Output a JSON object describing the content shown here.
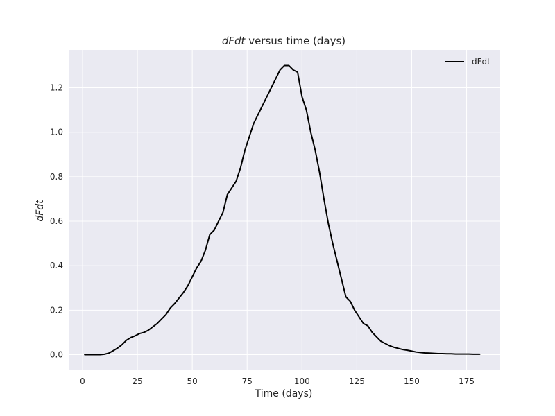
{
  "chart_data": {
    "type": "line",
    "title": {
      "italic": "dFdt",
      "rest": " versus time (days)"
    },
    "xlabel": "Time (days)",
    "ylabel": "dFdt",
    "xlim": [
      -6,
      190
    ],
    "ylim": [
      -0.07,
      1.37
    ],
    "xticks": [
      0,
      25,
      50,
      75,
      100,
      125,
      150,
      175
    ],
    "yticks": [
      0.0,
      0.2,
      0.4,
      0.6,
      0.8,
      1.0,
      1.2
    ],
    "ytick_labels": [
      "0.0",
      "0.2",
      "0.4",
      "0.6",
      "0.8",
      "1.0",
      "1.2"
    ],
    "grid": true,
    "legend_position": "top-right",
    "colors": {
      "background": "#eaeaf2",
      "grid": "#ffffff",
      "line": "#000000"
    },
    "series": [
      {
        "name": "dFdt",
        "x": [
          1,
          5,
          8,
          10,
          12,
          14,
          16,
          18,
          20,
          22,
          24,
          26,
          28,
          30,
          32,
          34,
          36,
          38,
          40,
          42,
          44,
          46,
          48,
          50,
          52,
          54,
          56,
          58,
          60,
          62,
          64,
          66,
          68,
          70,
          72,
          74,
          76,
          78,
          80,
          82,
          84,
          86,
          88,
          90,
          92,
          94,
          96,
          98,
          100,
          102,
          104,
          106,
          108,
          110,
          112,
          114,
          116,
          118,
          120,
          122,
          124,
          126,
          128,
          130,
          132,
          134,
          136,
          138,
          140,
          142,
          144,
          146,
          148,
          150,
          152,
          154,
          156,
          158,
          160,
          162,
          164,
          166,
          168,
          170,
          172,
          174,
          176,
          178,
          181
        ],
        "y": [
          0.0,
          0.0,
          0.0,
          0.002,
          0.007,
          0.018,
          0.03,
          0.045,
          0.065,
          0.077,
          0.085,
          0.095,
          0.1,
          0.11,
          0.125,
          0.14,
          0.16,
          0.18,
          0.21,
          0.23,
          0.255,
          0.28,
          0.31,
          0.35,
          0.39,
          0.42,
          0.47,
          0.54,
          0.56,
          0.6,
          0.64,
          0.72,
          0.75,
          0.78,
          0.84,
          0.92,
          0.98,
          1.04,
          1.08,
          1.12,
          1.16,
          1.2,
          1.24,
          1.28,
          1.3,
          1.3,
          1.28,
          1.27,
          1.16,
          1.1,
          1.0,
          0.92,
          0.82,
          0.7,
          0.59,
          0.5,
          0.42,
          0.34,
          0.26,
          0.24,
          0.2,
          0.17,
          0.14,
          0.13,
          0.1,
          0.08,
          0.06,
          0.05,
          0.04,
          0.033,
          0.028,
          0.023,
          0.02,
          0.016,
          0.012,
          0.01,
          0.008,
          0.007,
          0.006,
          0.005,
          0.005,
          0.004,
          0.004,
          0.003,
          0.003,
          0.003,
          0.003,
          0.002,
          0.002
        ]
      }
    ]
  }
}
